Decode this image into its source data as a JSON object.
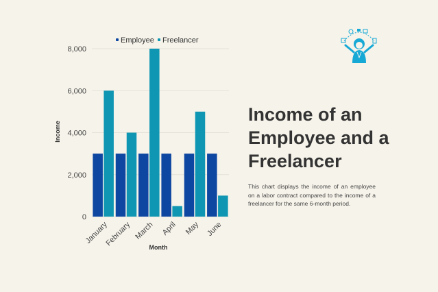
{
  "title_lines": [
    "Income of an",
    "Employee and a",
    "Freelancer"
  ],
  "description": "This chart displays the income of an employee on a labor contract compared to the income of a freelancer for the same 6-month period.",
  "illustration_icon": "woman-juggling-tasks-icon",
  "colors": {
    "employee": "#0d47a1",
    "freelancer": "#0f96b2",
    "grid": "#e4e1d8",
    "accent": "#16a9d6"
  },
  "chart_data": {
    "type": "bar",
    "categories": [
      "January",
      "February",
      "March",
      "April",
      "May",
      "June"
    ],
    "series": [
      {
        "name": "Employee",
        "values": [
          3000,
          3000,
          3000,
          3000,
          3000,
          3000
        ]
      },
      {
        "name": "Freelancer",
        "values": [
          6000,
          4000,
          8000,
          500,
          5000,
          1000
        ]
      }
    ],
    "xlabel": "Month",
    "ylabel": "Income",
    "ylim": [
      0,
      8000
    ],
    "yticks": [
      "0",
      "2,000",
      "4,000",
      "6,000",
      "8,000"
    ],
    "ytick_values": [
      0,
      2000,
      4000,
      6000,
      8000
    ],
    "grid": true,
    "legend": "top-center"
  }
}
